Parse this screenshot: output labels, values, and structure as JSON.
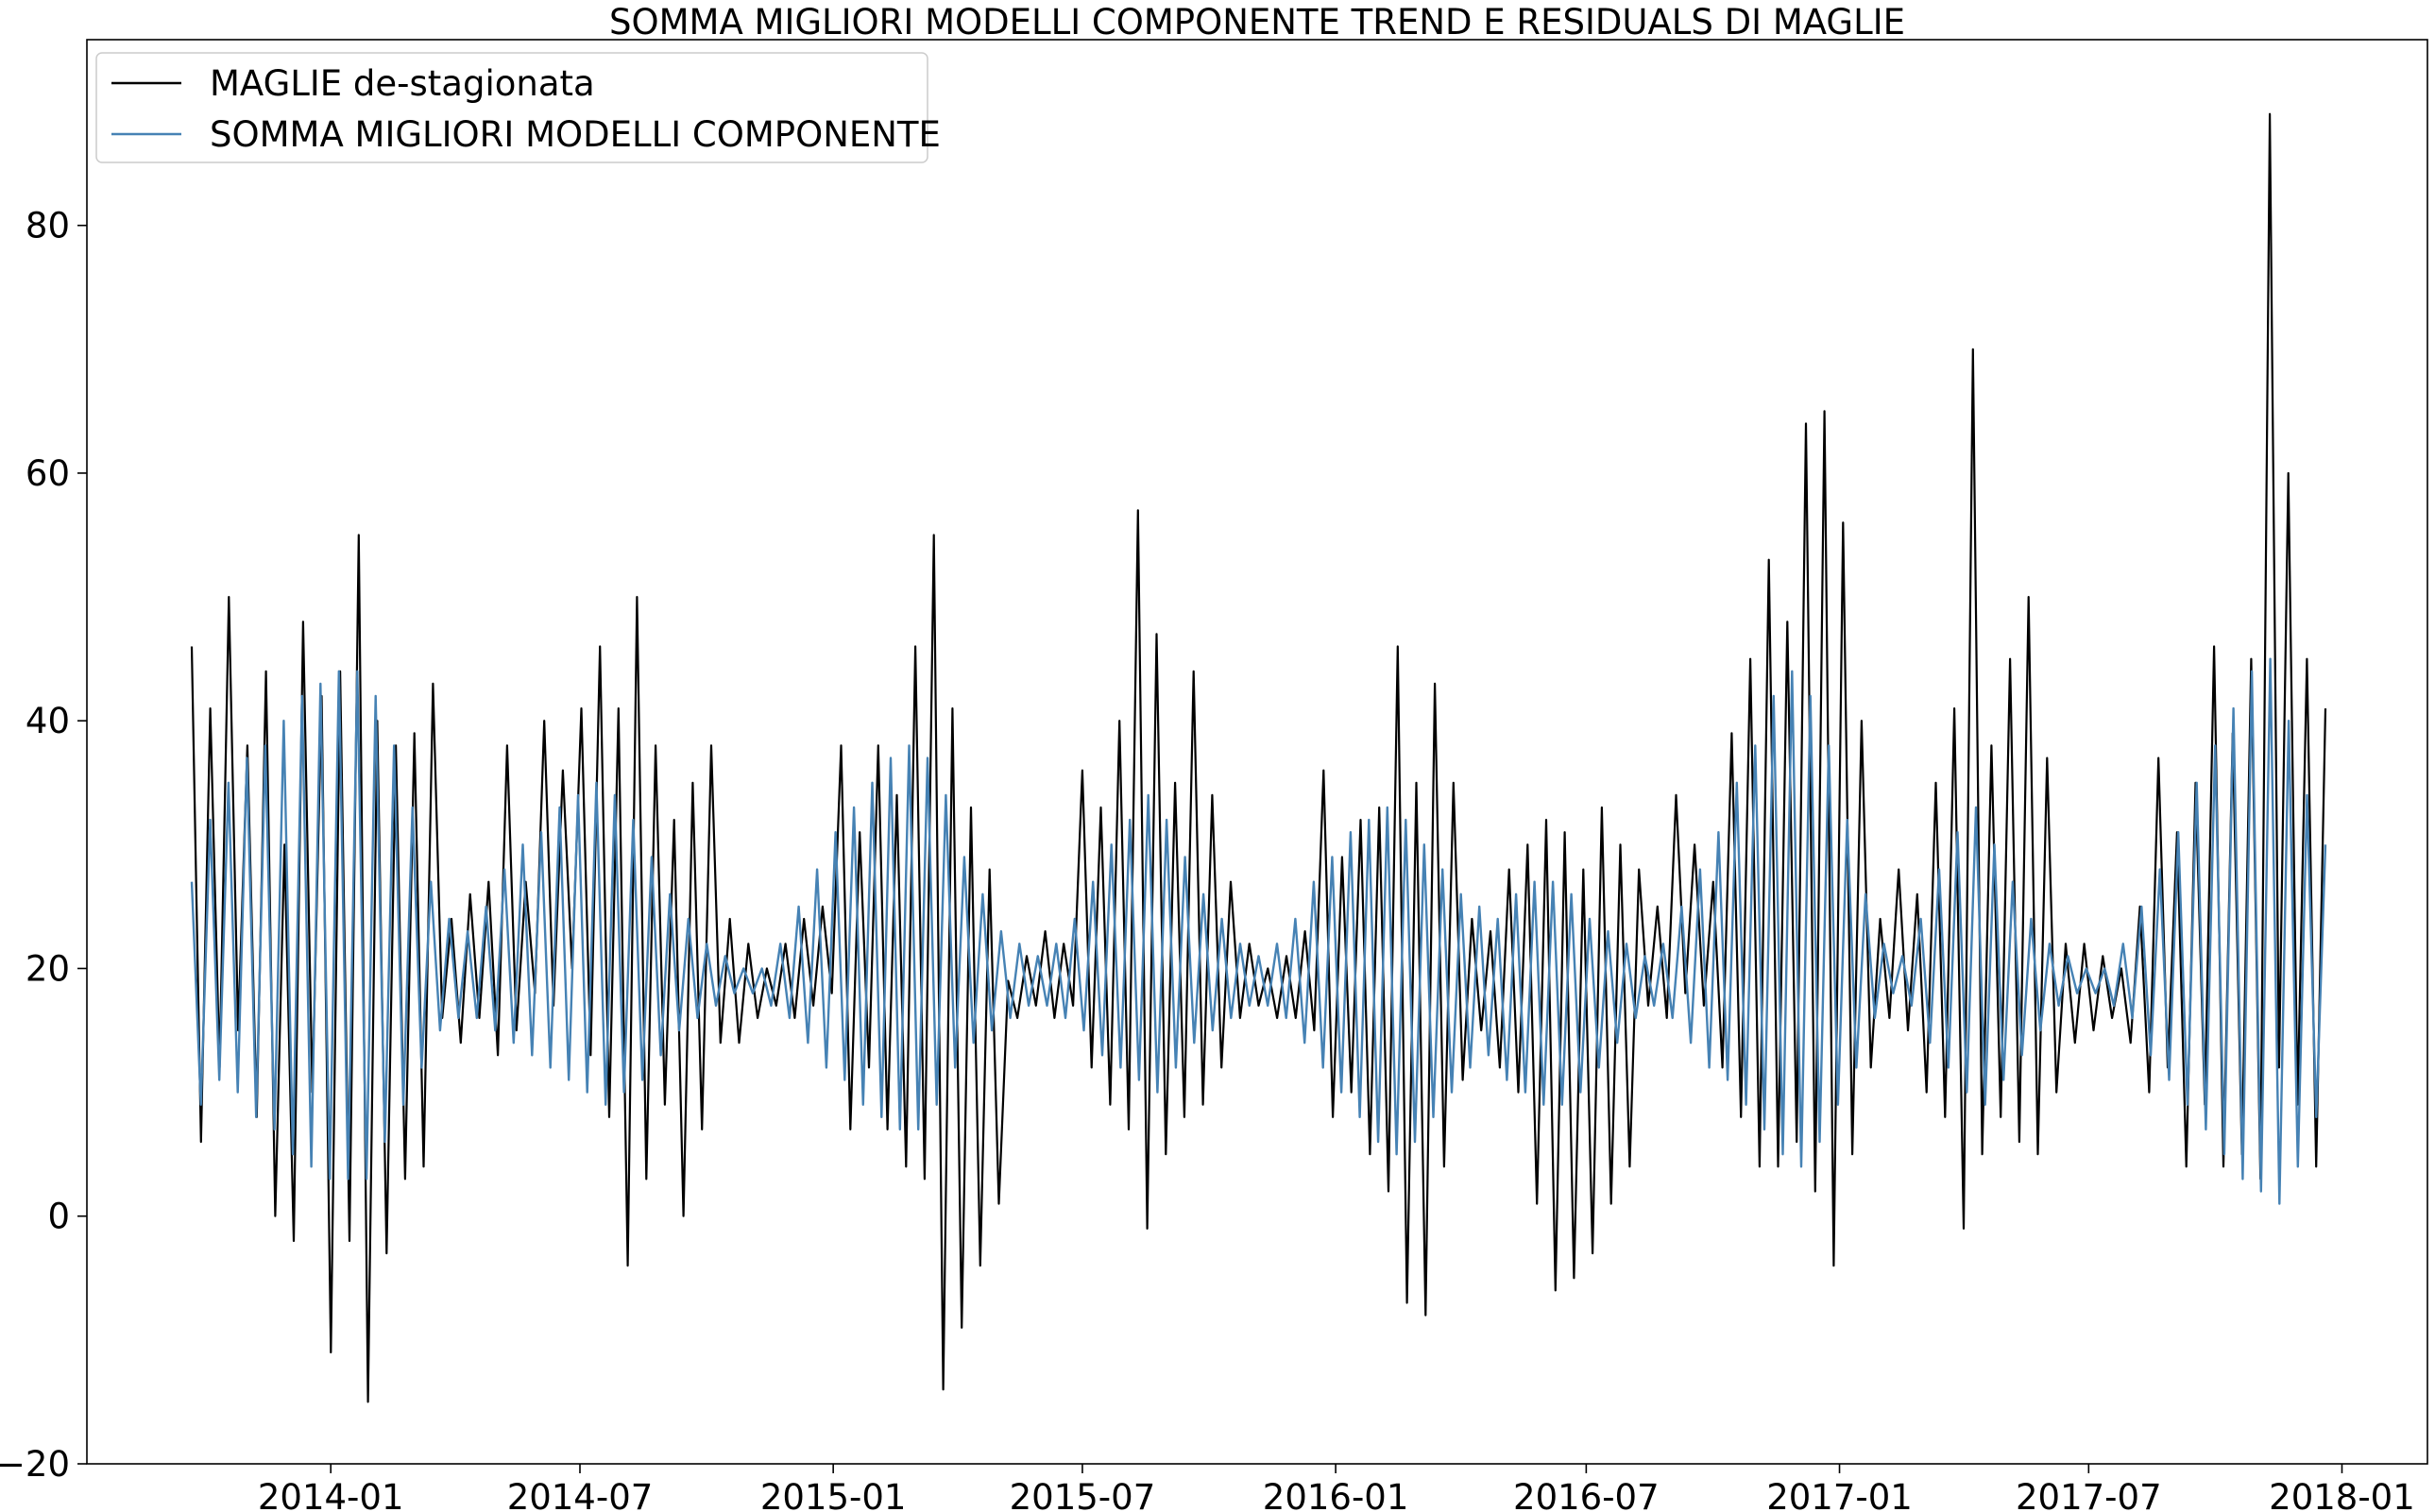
{
  "chart_data": {
    "type": "line",
    "title": "SOMMA MIGLIORI MODELLI COMPONENTE TREND E RESIDUALS DI MAGLIE",
    "xlabel": "",
    "ylabel": "",
    "x_range": [
      "2013-09-22",
      "2017-12-20"
    ],
    "ylim": [
      -20,
      95
    ],
    "y_ticks": [
      -20,
      0,
      20,
      40,
      60,
      80
    ],
    "x_ticks": [
      "2014-01",
      "2014-07",
      "2015-01",
      "2015-07",
      "2016-01",
      "2016-07",
      "2017-01",
      "2017-07",
      "2018-01"
    ],
    "grid": false,
    "legend_position": "top-left",
    "sampling": "approximately weekly, estimated from the plotted curves",
    "series": [
      {
        "name": "MAGLIE de-stagionata",
        "color": "#000000",
        "values": [
          46,
          6,
          41,
          12,
          50,
          15,
          38,
          8,
          44,
          0,
          30,
          -2,
          48,
          10,
          42,
          -11,
          44,
          -2,
          55,
          -15,
          40,
          -3,
          38,
          3,
          39,
          4,
          43,
          16,
          24,
          14,
          26,
          16,
          27,
          13,
          38,
          15,
          27,
          18,
          40,
          17,
          36,
          20,
          41,
          13,
          46,
          8,
          41,
          -4,
          50,
          3,
          38,
          9,
          32,
          0,
          35,
          7,
          38,
          14,
          24,
          14,
          22,
          16,
          20,
          17,
          22,
          16,
          24,
          17,
          25,
          18,
          38,
          7,
          31,
          12,
          38,
          7,
          34,
          4,
          46,
          3,
          55,
          -14,
          41,
          -9,
          33,
          -4,
          28,
          1,
          19,
          16,
          21,
          17,
          23,
          16,
          22,
          17,
          36,
          12,
          33,
          9,
          40,
          7,
          57,
          -1,
          47,
          5,
          35,
          8,
          44,
          9,
          34,
          12,
          27,
          16,
          22,
          17,
          20,
          16,
          21,
          16,
          23,
          15,
          36,
          8,
          29,
          10,
          32,
          5,
          33,
          2,
          46,
          -7,
          35,
          -8,
          43,
          4,
          35,
          11,
          24,
          15,
          23,
          12,
          28,
          10,
          30,
          1,
          32,
          -6,
          31,
          -5,
          28,
          -3,
          33,
          1,
          30,
          4,
          28,
          17,
          25,
          16,
          34,
          18,
          30,
          17,
          27,
          12,
          39,
          8,
          45,
          4,
          53,
          4,
          48,
          6,
          64,
          2,
          65,
          -4,
          56,
          5,
          40,
          12,
          24,
          16,
          28,
          15,
          26,
          10,
          35,
          8,
          41,
          -1,
          70,
          5,
          38,
          8,
          45,
          6,
          50,
          5,
          37,
          10,
          22,
          14,
          22,
          15,
          21,
          16,
          20,
          14,
          25,
          10,
          37,
          12,
          31,
          4,
          35,
          9,
          46,
          4,
          39,
          5,
          45,
          3,
          89,
          12,
          60,
          9,
          45,
          4,
          41
        ]
      },
      {
        "name": "SOMMA MIGLIORI MODELLI COMPONENTE",
        "color": "#4682b4",
        "values": [
          27,
          9,
          32,
          11,
          35,
          10,
          37,
          8,
          38,
          7,
          40,
          5,
          42,
          4,
          43,
          3,
          44,
          3,
          44,
          3,
          42,
          6,
          38,
          9,
          33,
          12,
          27,
          15,
          24,
          16,
          23,
          16,
          25,
          15,
          28,
          14,
          30,
          13,
          31,
          12,
          33,
          11,
          34,
          10,
          35,
          9,
          34,
          10,
          32,
          11,
          29,
          13,
          26,
          15,
          24,
          16,
          22,
          17,
          21,
          18,
          20,
          18,
          20,
          17,
          22,
          16,
          25,
          14,
          28,
          12,
          31,
          11,
          33,
          9,
          35,
          8,
          37,
          7,
          38,
          7,
          37,
          9,
          34,
          12,
          29,
          14,
          26,
          15,
          23,
          16,
          22,
          17,
          21,
          17,
          22,
          16,
          24,
          15,
          27,
          13,
          30,
          12,
          32,
          11,
          34,
          10,
          32,
          12,
          29,
          14,
          26,
          15,
          24,
          16,
          22,
          17,
          21,
          17,
          22,
          16,
          24,
          14,
          27,
          12,
          29,
          10,
          31,
          8,
          32,
          6,
          33,
          5,
          32,
          6,
          30,
          8,
          28,
          10,
          26,
          12,
          25,
          13,
          24,
          11,
          26,
          10,
          27,
          9,
          27,
          9,
          26,
          10,
          24,
          12,
          23,
          14,
          22,
          16,
          21,
          17,
          22,
          16,
          25,
          14,
          28,
          12,
          31,
          11,
          35,
          9,
          38,
          7,
          42,
          5,
          44,
          4,
          42,
          6,
          38,
          9,
          32,
          12,
          26,
          16,
          22,
          18,
          21,
          17,
          24,
          14,
          28,
          12,
          31,
          10,
          33,
          9,
          30,
          11,
          27,
          13,
          24,
          15,
          22,
          17,
          21,
          18,
          20,
          18,
          20,
          17,
          22,
          16,
          25,
          13,
          28,
          11,
          31,
          9,
          35,
          7,
          38,
          5,
          41,
          3,
          44,
          2,
          45,
          1,
          40,
          4,
          34,
          8,
          30
        ]
      }
    ]
  }
}
